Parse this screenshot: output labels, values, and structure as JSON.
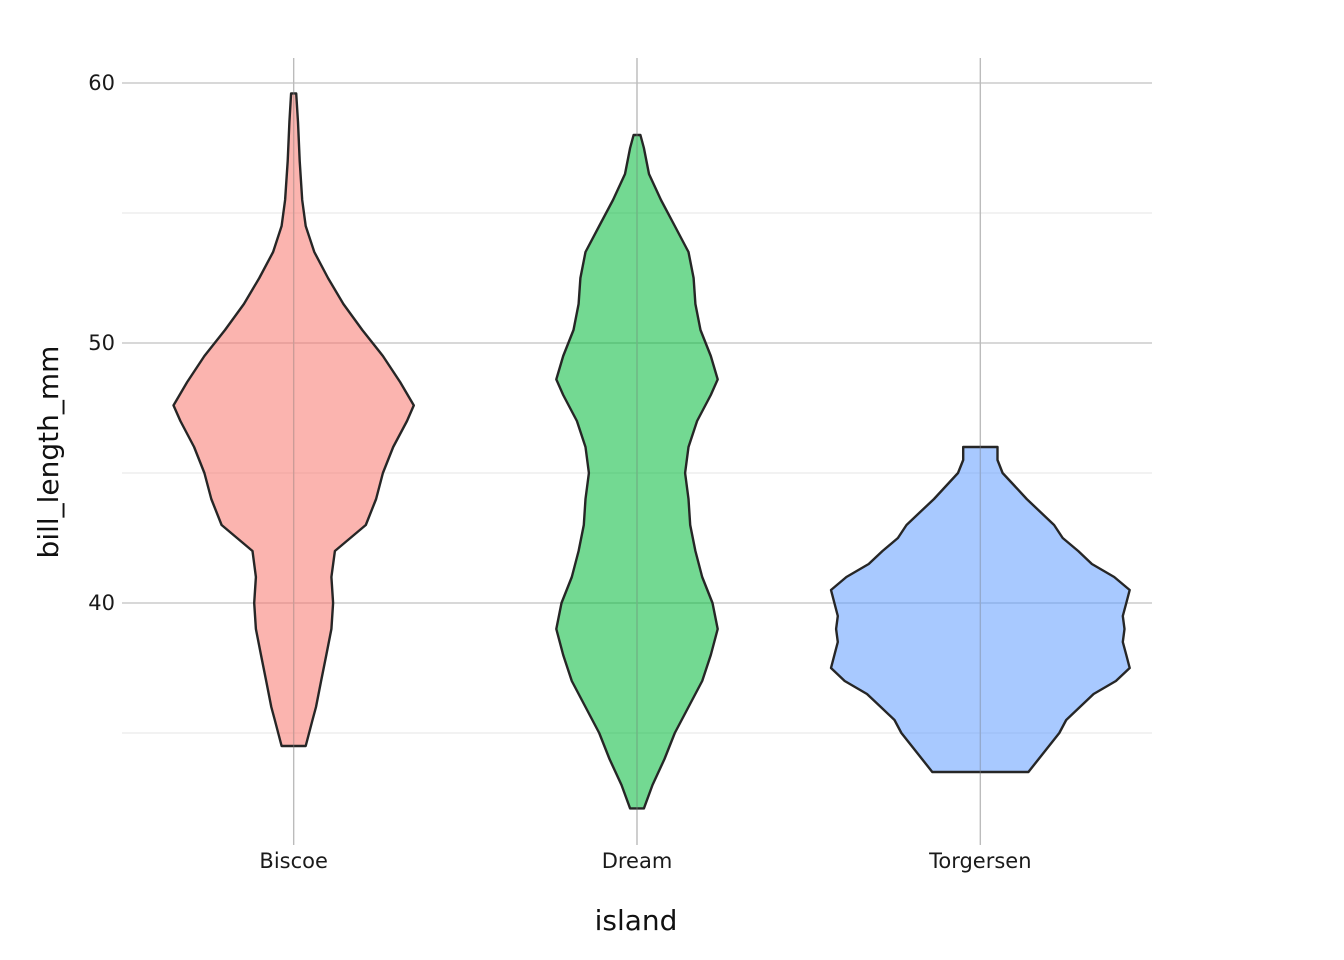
{
  "chart_data": {
    "type": "violin",
    "title": "",
    "xlabel": "island",
    "ylabel": "bill_length_mm",
    "ylim": [
      31.5,
      61
    ],
    "yticks": [
      40,
      50,
      60
    ],
    "grid": true,
    "legend": "none",
    "categories": [
      "Biscoe",
      "Dream",
      "Torgersen"
    ],
    "series": [
      {
        "category": "Biscoe",
        "color": "#F8766D",
        "profile": [
          [
            34.5,
            0.07
          ],
          [
            35.0,
            0.09
          ],
          [
            35.5,
            0.11
          ],
          [
            36.0,
            0.13
          ],
          [
            37.0,
            0.16
          ],
          [
            38.0,
            0.19
          ],
          [
            39.0,
            0.22
          ],
          [
            40.0,
            0.23
          ],
          [
            41.0,
            0.22
          ],
          [
            42.0,
            0.24
          ],
          [
            43.0,
            0.42
          ],
          [
            44.0,
            0.48
          ],
          [
            45.0,
            0.52
          ],
          [
            46.0,
            0.58
          ],
          [
            47.0,
            0.66
          ],
          [
            47.6,
            0.7
          ],
          [
            48.5,
            0.62
          ],
          [
            49.5,
            0.52
          ],
          [
            50.5,
            0.4
          ],
          [
            51.5,
            0.29
          ],
          [
            52.5,
            0.2
          ],
          [
            53.5,
            0.12
          ],
          [
            54.5,
            0.07
          ],
          [
            55.5,
            0.05
          ],
          [
            57.0,
            0.035
          ],
          [
            58.5,
            0.025
          ],
          [
            59.6,
            0.015
          ]
        ]
      },
      {
        "category": "Dream",
        "color": "#00BA38",
        "profile": [
          [
            32.1,
            0.04
          ],
          [
            33.0,
            0.09
          ],
          [
            34.0,
            0.16
          ],
          [
            35.0,
            0.22
          ],
          [
            36.0,
            0.3
          ],
          [
            37.0,
            0.38
          ],
          [
            38.0,
            0.43
          ],
          [
            39.0,
            0.47
          ],
          [
            40.0,
            0.44
          ],
          [
            41.0,
            0.38
          ],
          [
            42.0,
            0.34
          ],
          [
            43.0,
            0.31
          ],
          [
            44.0,
            0.3
          ],
          [
            45.0,
            0.28
          ],
          [
            46.0,
            0.3
          ],
          [
            47.0,
            0.35
          ],
          [
            48.0,
            0.43
          ],
          [
            48.6,
            0.47
          ],
          [
            49.5,
            0.43
          ],
          [
            50.5,
            0.37
          ],
          [
            51.5,
            0.34
          ],
          [
            52.5,
            0.33
          ],
          [
            53.5,
            0.3
          ],
          [
            54.5,
            0.22
          ],
          [
            55.5,
            0.14
          ],
          [
            56.5,
            0.07
          ],
          [
            57.5,
            0.04
          ],
          [
            58.0,
            0.02
          ]
        ]
      },
      {
        "category": "Torgersen",
        "color": "#619CFF",
        "profile": [
          [
            33.5,
            0.28
          ],
          [
            34.0,
            0.34
          ],
          [
            34.5,
            0.4
          ],
          [
            35.0,
            0.46
          ],
          [
            35.5,
            0.5
          ],
          [
            36.0,
            0.58
          ],
          [
            36.5,
            0.66
          ],
          [
            37.0,
            0.79
          ],
          [
            37.5,
            0.87
          ],
          [
            38.0,
            0.85
          ],
          [
            38.5,
            0.83
          ],
          [
            39.0,
            0.84
          ],
          [
            39.5,
            0.83
          ],
          [
            40.0,
            0.85
          ],
          [
            40.5,
            0.87
          ],
          [
            41.0,
            0.78
          ],
          [
            41.5,
            0.65
          ],
          [
            42.0,
            0.57
          ],
          [
            42.5,
            0.48
          ],
          [
            43.0,
            0.43
          ],
          [
            43.5,
            0.35
          ],
          [
            44.0,
            0.27
          ],
          [
            44.5,
            0.2
          ],
          [
            45.0,
            0.13
          ],
          [
            45.5,
            0.1
          ],
          [
            46.0,
            0.1
          ]
        ]
      }
    ]
  }
}
